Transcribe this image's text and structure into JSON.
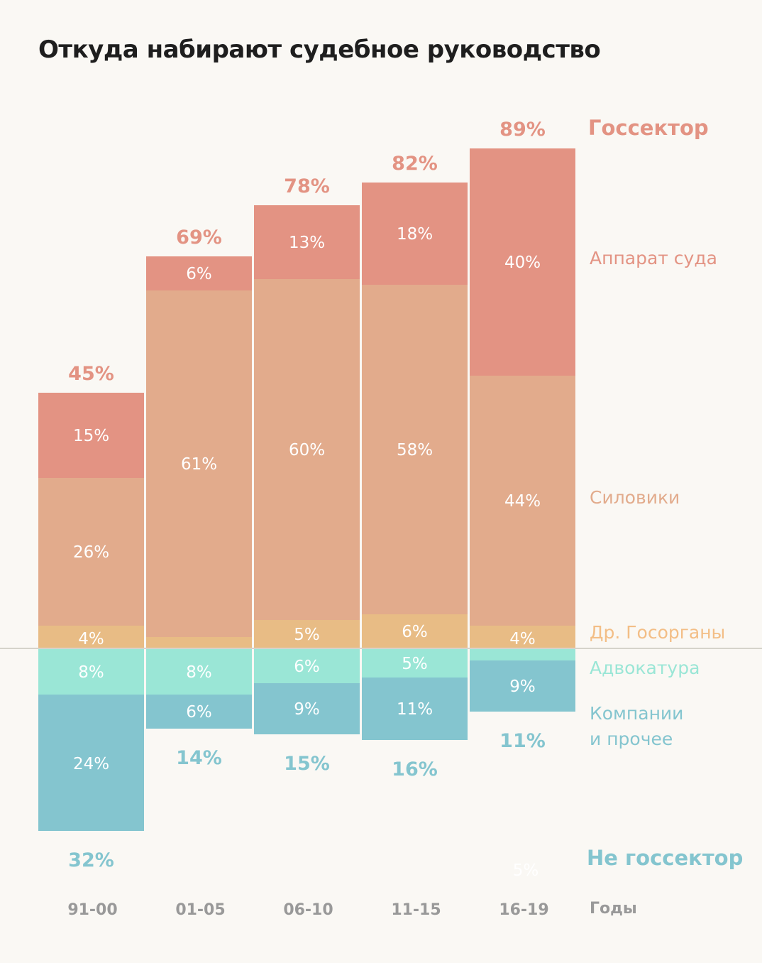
{
  "title": "Откуда набирают судебное руководство",
  "colors": {
    "apparat": "#E39383",
    "siloviki": "#E2AB8C",
    "gosorgany": "#E8BC85",
    "advokatura": "#9AE6D6",
    "kompanii": "#84C5CF",
    "baseline": "#D5D3CB",
    "years": "#999999"
  },
  "chart_data": {
    "type": "bar",
    "title": "Откуда набирают судебное руководство",
    "xlabel": "Годы",
    "ylabel": "",
    "categories": [
      "91-00",
      "01-05",
      "06-10",
      "11-15",
      "16-19"
    ],
    "positive_series": [
      {
        "name": "Др. Госорганы",
        "key": "gosorgany",
        "values": [
          4,
          2,
          5,
          6,
          4
        ],
        "labels": [
          "4%",
          "",
          "5%",
          "6%",
          "4%"
        ]
      },
      {
        "name": "Силовики",
        "key": "siloviki",
        "values": [
          26,
          61,
          60,
          58,
          44
        ],
        "labels": [
          "26%",
          "61%",
          "60%",
          "58%",
          "44%"
        ]
      },
      {
        "name": "Аппарат суда",
        "key": "apparat",
        "values": [
          15,
          6,
          13,
          18,
          40
        ],
        "labels": [
          "15%",
          "6%",
          "13%",
          "18%",
          "40%"
        ]
      }
    ],
    "negative_series": [
      {
        "name": "Адвокатура",
        "key": "advokatura",
        "values": [
          8,
          8,
          6,
          5,
          2
        ],
        "labels": [
          "8%",
          "8%",
          "6%",
          "5%",
          ""
        ]
      },
      {
        "name": "Компании и прочее",
        "key": "kompanii",
        "values": [
          24,
          6,
          9,
          11,
          9
        ],
        "labels": [
          "24%",
          "6%",
          "9%",
          "11%",
          "9%"
        ]
      }
    ],
    "totals_positive": {
      "name": "Госсектор",
      "values": [
        45,
        69,
        78,
        82,
        89
      ],
      "labels": [
        "45%",
        "69%",
        "78%",
        "82%",
        "89%"
      ]
    },
    "totals_negative": {
      "name": "Не госсектор",
      "values": [
        32,
        14,
        15,
        16,
        11
      ],
      "labels": [
        "32%",
        "14%",
        "15%",
        "16%",
        "11%"
      ]
    },
    "stray_label": "5%",
    "unit": "%",
    "grid": false,
    "legend_position": "right",
    "legend": {
      "gossektor": "Госсектор",
      "apparat": "Аппарат суда",
      "siloviki": "Силовики",
      "gosorgany": "Др. Госорганы",
      "advokatura": "Адвокатура",
      "kompanii_line1": "Компании",
      "kompanii_line2": "и прочее",
      "ne_gossektor": "Не госсектор",
      "years": "Годы"
    }
  }
}
